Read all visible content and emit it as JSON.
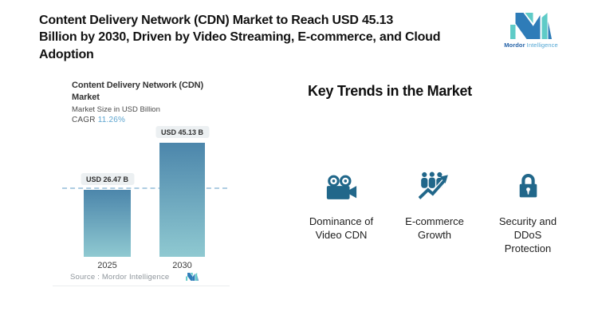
{
  "header": {
    "title": "Content Delivery Network (CDN) Market to Reach USD 45.13 Billion by 2030, Driven by Video Streaming, E-commerce, and Cloud Adoption",
    "title_lines": [
      "Content Delivery Network (CDN) Market to Reach USD 45.13",
      "Billion by 2030, Driven by Video Streaming, E-commerce, and Cloud",
      "Adoption"
    ]
  },
  "brand": {
    "name_bold": "Mordor",
    "name_light": "Intelligence"
  },
  "chart": {
    "title_lines": [
      "Content Delivery Network (CDN)",
      "Market"
    ],
    "subtitle": "Market Size in USD Billion",
    "cagr_label": "CAGR",
    "cagr_value": "11.26%",
    "source_label": "Source :  Mordor Intelligence"
  },
  "chart_data": {
    "type": "bar",
    "title": "Content Delivery Network (CDN) Market",
    "ylabel": "Market Size in USD Billion",
    "categories": [
      "2025",
      "2030"
    ],
    "values": [
      26.47,
      45.13
    ],
    "value_labels": [
      "USD 26.47 B",
      "USD 45.13 B"
    ],
    "ylim": [
      0,
      50
    ],
    "cagr_percent": 11.26,
    "reference_line_value": 26.47,
    "grid": false,
    "legend": false,
    "bar_gradient_top": "#4C86AB",
    "bar_gradient_bottom": "#8FC9D1"
  },
  "trends": {
    "heading": "Key Trends in the Market",
    "items": [
      {
        "icon": "video-camera-icon",
        "label": "Dominance of Video CDN",
        "label_lines": [
          "Dominance of",
          "Video CDN"
        ]
      },
      {
        "icon": "ecommerce-growth-icon",
        "label": "E-commerce Growth",
        "label_lines": [
          "E-commerce",
          "Growth"
        ]
      },
      {
        "icon": "lock-icon",
        "label": "Security and DDoS Protection",
        "label_lines": [
          "Security and",
          "DDoS",
          "Protection"
        ]
      }
    ]
  },
  "colors": {
    "accent_blue": "#5CA4CF",
    "icon_teal": "#21678A",
    "logo_dark_blue": "#2E7CB8",
    "logo_teal": "#5FCBC7",
    "bar_gradient_top": "#4C86AB",
    "bar_gradient_bottom": "#8FC9D1",
    "dashed_line": "#AECDE2",
    "value_pill_bg": "#ECF0F2"
  }
}
